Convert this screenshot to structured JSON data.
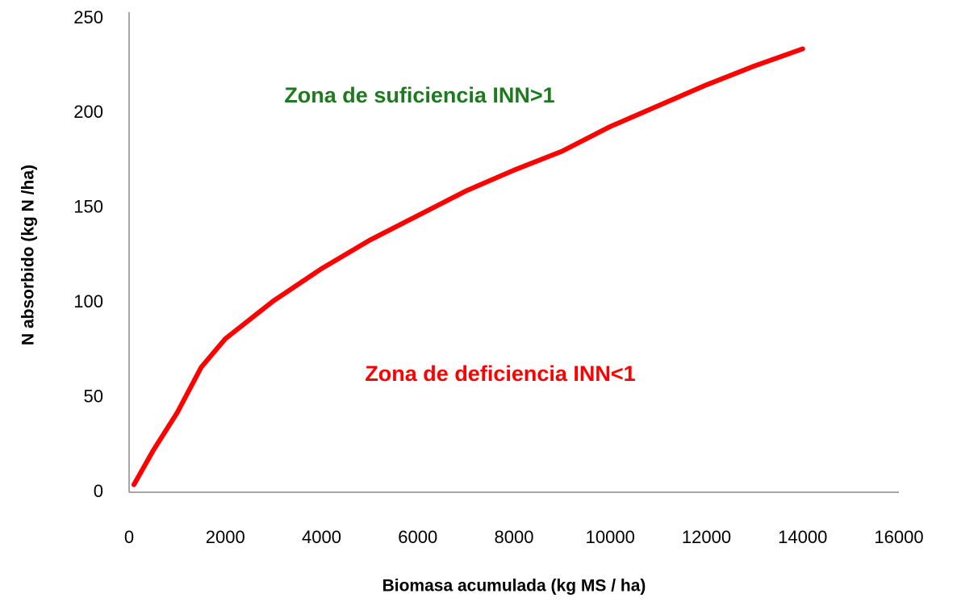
{
  "chart_data": {
    "type": "line",
    "x_label": "Biomasa acumulada  (kg MS / ha)",
    "y_label": "N absorbido  (kg N /ha)",
    "annotations": [
      {
        "text": "Zona de suficiencia INN>1",
        "color": "#1e7a1e"
      },
      {
        "text": "Zona de deficiencia INN<1",
        "color": "#ff0000"
      }
    ],
    "x": [
      100,
      500,
      1000,
      1500,
      2000,
      3000,
      4000,
      5000,
      6000,
      7000,
      8000,
      9000,
      10000,
      11000,
      12000,
      13000,
      14000
    ],
    "series": [
      {
        "color": "#ff0000",
        "values": [
          4,
          22,
          42,
          66,
          81,
          101,
          118,
          133,
          146,
          159,
          170,
          180,
          193,
          204,
          215,
          225,
          234
        ]
      }
    ],
    "xlim": [
      0,
      16000
    ],
    "xticks": [
      0,
      2000,
      4000,
      6000,
      8000,
      10000,
      12000,
      14000,
      16000
    ],
    "ylim": [
      0,
      250
    ],
    "yticks": [
      0,
      50,
      100,
      150,
      200,
      250
    ],
    "grid": false
  }
}
